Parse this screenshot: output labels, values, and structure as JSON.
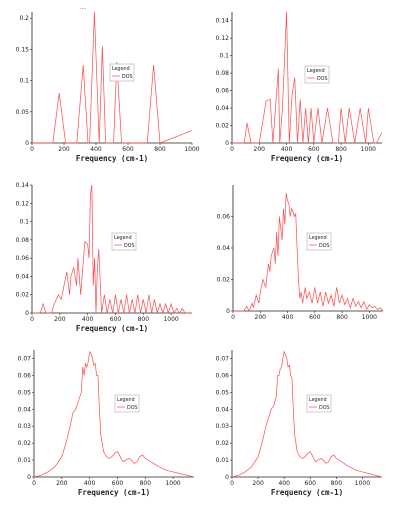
{
  "chart_data": [
    {
      "type": "line",
      "title": "....",
      "xlabel": "Frequency (cm-1)",
      "ylabel": "",
      "xlim": [
        0,
        1000
      ],
      "ylim": [
        0,
        0.21
      ],
      "xticks": [
        0,
        200,
        400,
        600,
        800,
        1000
      ],
      "yticks": [
        0,
        0.05,
        0.1,
        0.15,
        0.2
      ],
      "legend": {
        "title": "Legend",
        "entries": [
          "DOS"
        ],
        "position": "center-right"
      },
      "series": [
        {
          "name": "DOS",
          "x": [
            0,
            130,
            170,
            210,
            280,
            320,
            350,
            360,
            390,
            420,
            440,
            460,
            510,
            530,
            560,
            600,
            720,
            760,
            800,
            1000
          ],
          "y": [
            0,
            0,
            0.08,
            0,
            0,
            0.125,
            0,
            0,
            0.21,
            0,
            0.155,
            0,
            0,
            0.13,
            0,
            0,
            0,
            0.125,
            0,
            0.02
          ]
        }
      ]
    },
    {
      "type": "line",
      "title": "",
      "xlabel": "Frequency (cm-1)",
      "ylabel": "",
      "xlim": [
        0,
        1100
      ],
      "ylim": [
        0,
        0.15
      ],
      "xticks": [
        0,
        200,
        400,
        600,
        800,
        1000
      ],
      "yticks": [
        0,
        0.02,
        0.04,
        0.06,
        0.08,
        0.1,
        0.12,
        0.14
      ],
      "legend": {
        "title": "Legend",
        "entries": [
          "DOS"
        ],
        "position": "center-right"
      },
      "series": [
        {
          "name": "DOS",
          "x": [
            0,
            90,
            110,
            140,
            200,
            250,
            280,
            300,
            340,
            350,
            370,
            400,
            420,
            440,
            460,
            480,
            500,
            520,
            540,
            560,
            580,
            600,
            630,
            660,
            700,
            740,
            780,
            800,
            830,
            860,
            900,
            940,
            980,
            1000,
            1040,
            1060,
            1100
          ],
          "y": [
            0,
            0,
            0.023,
            0,
            0,
            0.048,
            0.05,
            0,
            0.085,
            0,
            0.04,
            0.15,
            0,
            0.055,
            0.075,
            0,
            0.05,
            0,
            0.04,
            0,
            0.04,
            0,
            0.04,
            0,
            0.04,
            0,
            0,
            0.04,
            0,
            0.04,
            0,
            0.04,
            0,
            0.04,
            0,
            0,
            0.012
          ]
        }
      ]
    },
    {
      "type": "line",
      "title": "",
      "xlabel": "Frequency (cm-1)",
      "ylabel": "",
      "xlim": [
        0,
        1150
      ],
      "ylim": [
        0,
        0.14
      ],
      "xticks": [
        0,
        200,
        400,
        600,
        800,
        1000
      ],
      "yticks": [
        0,
        0.02,
        0.04,
        0.06,
        0.08,
        0.1,
        0.12,
        0.14
      ],
      "legend": {
        "title": "Legend",
        "entries": [
          "DOS"
        ],
        "position": "center-right"
      },
      "series": [
        {
          "name": "DOS",
          "x": [
            0,
            60,
            80,
            100,
            140,
            160,
            190,
            210,
            230,
            250,
            270,
            280,
            300,
            320,
            330,
            350,
            360,
            380,
            400,
            410,
            420,
            430,
            440,
            450,
            460,
            470,
            480,
            500,
            520,
            540,
            560,
            580,
            600,
            620,
            640,
            660,
            680,
            700,
            720,
            740,
            760,
            780,
            800,
            820,
            840,
            860,
            880,
            900,
            920,
            940,
            960,
            980,
            1000,
            1020,
            1040,
            1060,
            1080,
            1100,
            1150
          ],
          "y": [
            0,
            0,
            0.01,
            0,
            0,
            0.01,
            0.02,
            0.015,
            0.03,
            0.045,
            0.02,
            0.04,
            0.05,
            0.03,
            0.06,
            0.02,
            0.04,
            0.078,
            0.075,
            0.06,
            0.13,
            0.14,
            0.03,
            0.06,
            0,
            0.05,
            0.07,
            0,
            0.02,
            0,
            0.015,
            0,
            0.02,
            0,
            0.015,
            0,
            0.02,
            0,
            0.015,
            0,
            0.02,
            0,
            0.015,
            0,
            0.02,
            0,
            0.015,
            0,
            0.01,
            0,
            0.01,
            0,
            0.01,
            0,
            0.005,
            0,
            0.005,
            0,
            0
          ]
        }
      ]
    },
    {
      "type": "line",
      "title": "",
      "xlabel": "",
      "ylabel": "",
      "xlim": [
        0,
        1100
      ],
      "ylim": [
        0,
        0.08
      ],
      "xticks": [
        0,
        200,
        400,
        600,
        800,
        1000
      ],
      "yticks": [
        0,
        0.02,
        0.04,
        0.06
      ],
      "legend": {
        "title": "Legend",
        "entries": [
          "DOS"
        ],
        "position": "center-right"
      },
      "series": [
        {
          "name": "DOS",
          "x": [
            0,
            80,
            100,
            120,
            140,
            150,
            170,
            190,
            200,
            220,
            240,
            260,
            270,
            280,
            300,
            310,
            320,
            330,
            340,
            360,
            370,
            380,
            390,
            400,
            410,
            420,
            430,
            440,
            450,
            460,
            470,
            480,
            490,
            500,
            510,
            520,
            530,
            540,
            560,
            580,
            600,
            620,
            640,
            660,
            680,
            700,
            720,
            740,
            760,
            780,
            800,
            820,
            840,
            860,
            880,
            900,
            920,
            940,
            960,
            980,
            1000,
            1020,
            1040,
            1060,
            1080,
            1100
          ],
          "y": [
            0,
            0,
            0.003,
            0,
            0.005,
            0.002,
            0.01,
            0.005,
            0.012,
            0.02,
            0.015,
            0.03,
            0.025,
            0.035,
            0.04,
            0.03,
            0.05,
            0.035,
            0.06,
            0.045,
            0.065,
            0.055,
            0.075,
            0.07,
            0.068,
            0.06,
            0.065,
            0.063,
            0.06,
            0.062,
            0.04,
            0.02,
            0.008,
            0.012,
            0.005,
            0.01,
            0.015,
            0.008,
            0.012,
            0.005,
            0.015,
            0.005,
            0.012,
            0.003,
            0.012,
            0.005,
            0.01,
            0.003,
            0.015,
            0.005,
            0.01,
            0.004,
            0.008,
            0.002,
            0.008,
            0.003,
            0.006,
            0.002,
            0.006,
            0.001,
            0.004,
            0.002,
            0.003,
            0.001,
            0.002,
            0
          ]
        }
      ]
    },
    {
      "type": "line",
      "title": "",
      "xlabel": "Frequency (cm-1)",
      "ylabel": "",
      "xlim": [
        0,
        1150
      ],
      "ylim": [
        0,
        0.075
      ],
      "xticks": [
        0,
        200,
        400,
        600,
        800,
        1000
      ],
      "yticks": [
        0,
        0.01,
        0.02,
        0.03,
        0.04,
        0.05,
        0.06,
        0.07
      ],
      "legend": {
        "title": "Legend",
        "entries": [
          "DOS"
        ],
        "position": "center-right"
      },
      "series": [
        {
          "name": "DOS",
          "x": [
            0,
            50,
            100,
            150,
            200,
            230,
            260,
            280,
            300,
            320,
            340,
            350,
            360,
            370,
            380,
            390,
            400,
            410,
            420,
            430,
            440,
            450,
            460,
            470,
            480,
            500,
            520,
            540,
            560,
            580,
            600,
            620,
            640,
            660,
            680,
            700,
            720,
            740,
            760,
            780,
            800,
            820,
            840,
            860,
            880,
            900,
            950,
            1000,
            1050,
            1100,
            1150
          ],
          "y": [
            0,
            0.001,
            0.003,
            0.006,
            0.012,
            0.02,
            0.03,
            0.038,
            0.04,
            0.045,
            0.05,
            0.065,
            0.06,
            0.067,
            0.065,
            0.068,
            0.074,
            0.073,
            0.07,
            0.066,
            0.067,
            0.06,
            0.06,
            0.04,
            0.025,
            0.015,
            0.012,
            0.011,
            0.012,
            0.014,
            0.015,
            0.012,
            0.009,
            0.01,
            0.011,
            0.01,
            0.008,
            0.009,
            0.012,
            0.013,
            0.011,
            0.01,
            0.009,
            0.008,
            0.007,
            0.006,
            0.004,
            0.003,
            0.002,
            0.001,
            0
          ]
        }
      ]
    },
    {
      "type": "line",
      "title": "",
      "xlabel": "Frequency (cm-1)",
      "ylabel": "",
      "xlim": [
        0,
        1150
      ],
      "ylim": [
        0,
        0.075
      ],
      "xticks": [
        0,
        200,
        400,
        600,
        800,
        1000
      ],
      "yticks": [
        0,
        0.01,
        0.02,
        0.03,
        0.04,
        0.05,
        0.06,
        0.07
      ],
      "legend": {
        "title": "Legend",
        "entries": [
          "DOS"
        ],
        "position": "center-right"
      },
      "series": [
        {
          "name": "DOS",
          "x": [
            0,
            50,
            100,
            150,
            200,
            230,
            260,
            280,
            300,
            320,
            340,
            350,
            360,
            370,
            380,
            390,
            400,
            410,
            420,
            430,
            440,
            450,
            460,
            470,
            480,
            500,
            520,
            540,
            560,
            580,
            600,
            620,
            640,
            660,
            680,
            700,
            720,
            740,
            760,
            780,
            800,
            820,
            840,
            860,
            880,
            900,
            950,
            1000,
            1050,
            1100,
            1150
          ],
          "y": [
            0,
            0.001,
            0.003,
            0.006,
            0.012,
            0.02,
            0.03,
            0.035,
            0.04,
            0.042,
            0.048,
            0.06,
            0.06,
            0.064,
            0.065,
            0.07,
            0.074,
            0.072,
            0.07,
            0.065,
            0.066,
            0.06,
            0.058,
            0.04,
            0.025,
            0.015,
            0.012,
            0.011,
            0.012,
            0.014,
            0.015,
            0.012,
            0.009,
            0.01,
            0.011,
            0.01,
            0.008,
            0.009,
            0.012,
            0.013,
            0.011,
            0.01,
            0.009,
            0.008,
            0.007,
            0.006,
            0.004,
            0.003,
            0.002,
            0.001,
            0
          ]
        }
      ]
    }
  ]
}
